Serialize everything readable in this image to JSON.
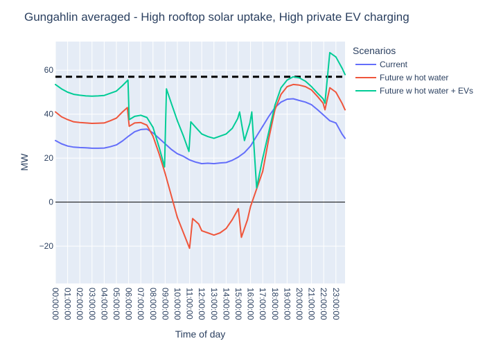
{
  "chart_data": {
    "type": "line",
    "title": "Gungahlin averaged - High rooftop solar uptake, High private EV charging",
    "xlabel": "Time of day",
    "ylabel": "MW",
    "xlim": [
      0,
      23.75
    ],
    "ylim": [
      -37,
      73
    ],
    "y_ticks": [
      -20,
      0,
      20,
      40,
      60
    ],
    "y_tick_labels": [
      "−20",
      "0",
      "20",
      "40",
      "60"
    ],
    "x_ticks": [
      0,
      1,
      2,
      3,
      4,
      5,
      6,
      7,
      8,
      9,
      10,
      11,
      12,
      13,
      14,
      15,
      16,
      17,
      18,
      19,
      20,
      21,
      22,
      23
    ],
    "x_tick_labels": [
      "00:00:00",
      "01:00:00",
      "02:00:00",
      "03:00:00",
      "04:00:00",
      "05:00:00",
      "06:00:00",
      "07:00:00",
      "08:00:00",
      "09:00:00",
      "10:00:00",
      "11:00:00",
      "12:00:00",
      "13:00:00",
      "14:00:00",
      "15:00:00",
      "16:00:00",
      "17:00:00",
      "18:00:00",
      "19:00:00",
      "20:00:00",
      "21:00:00",
      "22:00:00",
      "23:00:00"
    ],
    "reference_line": {
      "y": 57,
      "style": "dashed",
      "color": "#000000"
    },
    "zero_line": {
      "y": 0,
      "color": "#000000"
    },
    "legend": {
      "title": "Scenarios",
      "position": "right"
    },
    "series": [
      {
        "name": "Current",
        "color": "#636efa",
        "x": [
          0,
          0.5,
          1,
          1.5,
          2,
          2.5,
          3,
          3.5,
          4,
          4.5,
          5,
          5.5,
          6,
          6.5,
          7,
          7.5,
          8,
          8.5,
          9,
          9.5,
          10,
          10.5,
          11,
          11.5,
          12,
          12.5,
          13,
          13.5,
          14,
          14.5,
          15,
          15.5,
          16,
          16.5,
          17,
          17.5,
          18,
          18.5,
          19,
          19.5,
          20,
          20.5,
          21,
          21.5,
          22,
          22.5,
          23,
          23.5,
          23.75
        ],
        "y": [
          28,
          26.5,
          25.5,
          25,
          24.8,
          24.7,
          24.5,
          24.5,
          24.6,
          25.2,
          26,
          27.8,
          30,
          32,
          33,
          33.2,
          31.5,
          29,
          26.5,
          24,
          22,
          20.8,
          19.2,
          18.2,
          17.5,
          17.7,
          17.5,
          17.8,
          18,
          19,
          20.5,
          22.5,
          25.5,
          30,
          34.5,
          39,
          43,
          45.5,
          46.8,
          47,
          46.2,
          45.5,
          44.3,
          42,
          39.5,
          37,
          36,
          31,
          29
        ]
      },
      {
        "name": "Future w hot water",
        "color": "#ef553b",
        "x": [
          0,
          0.5,
          1,
          1.5,
          2,
          2.5,
          3,
          3.5,
          4,
          4.5,
          5,
          5.5,
          5.9,
          6.05,
          6.5,
          7,
          7.5,
          8,
          8.5,
          9,
          9.5,
          10,
          10.5,
          11,
          11.25,
          11.75,
          12,
          12.5,
          13,
          13.5,
          14,
          14.5,
          15,
          15.25,
          15.75,
          16,
          16.5,
          17,
          17.5,
          18,
          18.5,
          19,
          19.5,
          20,
          20.5,
          21,
          21.5,
          21.95,
          22.1,
          22.5,
          23,
          23.5,
          23.75
        ],
        "y": [
          41,
          38.8,
          37.5,
          36.5,
          36.2,
          36,
          35.8,
          35.9,
          36,
          37,
          38.2,
          41,
          43,
          34.5,
          36,
          36.2,
          35,
          30,
          22,
          13,
          3,
          -7,
          -14,
          -21,
          -7.5,
          -10,
          -13,
          -14,
          -15,
          -14,
          -12,
          -8,
          -3,
          -16,
          -8,
          -2,
          6,
          14,
          29,
          42,
          49,
          52.5,
          53.5,
          53.2,
          52.5,
          51,
          48,
          45,
          42,
          52,
          50,
          45,
          42
        ]
      },
      {
        "name": "Future w hot water + EVs",
        "color": "#00cc96",
        "x": [
          0,
          0.5,
          1,
          1.5,
          2,
          2.5,
          3,
          3.5,
          4,
          4.5,
          5,
          5.5,
          5.95,
          6.05,
          6.5,
          7,
          7.5,
          8,
          8.5,
          8.95,
          9.1,
          9.5,
          10,
          10.5,
          10.95,
          11.1,
          11.5,
          12,
          12.5,
          13,
          13.5,
          14,
          14.5,
          14.95,
          15.1,
          15.5,
          15.95,
          16.1,
          16.5,
          17,
          17.5,
          18,
          18.5,
          19,
          19.5,
          20,
          20.5,
          21,
          21.5,
          21.95,
          22.1,
          22.5,
          23,
          23.5,
          23.75
        ],
        "y": [
          53.5,
          51.5,
          50,
          49,
          48.6,
          48.3,
          48.2,
          48.3,
          48.5,
          49.5,
          50.5,
          53,
          55.5,
          37.5,
          39,
          39.5,
          38.5,
          34,
          25,
          16,
          51.5,
          45,
          37,
          30,
          23,
          36.5,
          34,
          31,
          29.8,
          29,
          30,
          31,
          33.5,
          38,
          41,
          28,
          36,
          41,
          6.5,
          20,
          32,
          44,
          52,
          55.5,
          57,
          56.5,
          55,
          52.5,
          49.5,
          47,
          45,
          68,
          66,
          61,
          58
        ]
      }
    ]
  }
}
